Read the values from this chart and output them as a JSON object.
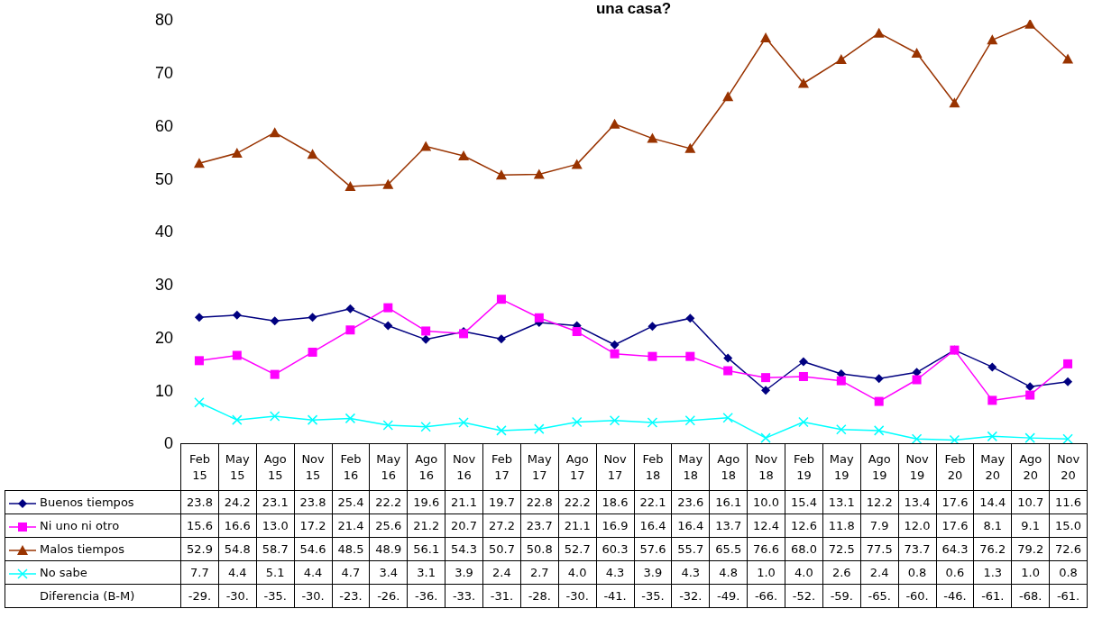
{
  "chart_data": {
    "type": "line",
    "title": "una casa?",
    "categories": [
      "Feb 15",
      "May 15",
      "Ago 15",
      "Nov 15",
      "Feb 16",
      "May 16",
      "Ago 16",
      "Nov 16",
      "Feb 17",
      "May 17",
      "Ago 17",
      "Nov 17",
      "Feb 18",
      "May 18",
      "Ago 18",
      "Nov 18",
      "Feb 19",
      "May 19",
      "Ago 19",
      "Nov 19",
      "Feb 20",
      "May 20",
      "Ago 20",
      "Nov 20"
    ],
    "series": [
      {
        "name": "Buenos tiempos",
        "color": "#000080",
        "marker": "diamond",
        "values": [
          23.8,
          24.2,
          23.1,
          23.8,
          25.4,
          22.2,
          19.6,
          21.1,
          19.7,
          22.8,
          22.2,
          18.6,
          22.1,
          23.6,
          16.1,
          10.0,
          15.4,
          13.1,
          12.2,
          13.4,
          17.6,
          14.4,
          10.7,
          11.6
        ],
        "value_labels": [
          "23.8",
          "24.2",
          "23.1",
          "23.8",
          "25.4",
          "22.2",
          "19.6",
          "21.1",
          "19.7",
          "22.8",
          "22.2",
          "18.6",
          "22.1",
          "23.6",
          "16.1",
          "10.0",
          "15.4",
          "13.1",
          "12.2",
          "13.4",
          "17.6",
          "14.4",
          "10.7",
          "11.6"
        ]
      },
      {
        "name": "Ni uno ni otro",
        "color": "#ff00ff",
        "marker": "square",
        "values": [
          15.6,
          16.6,
          13.0,
          17.2,
          21.4,
          25.6,
          21.2,
          20.7,
          27.2,
          23.7,
          21.1,
          16.9,
          16.4,
          16.4,
          13.7,
          12.4,
          12.6,
          11.8,
          7.9,
          12.0,
          17.6,
          8.1,
          9.1,
          15.0
        ],
        "value_labels": [
          "15.6",
          "16.6",
          "13.0",
          "17.2",
          "21.4",
          "25.6",
          "21.2",
          "20.7",
          "27.2",
          "23.7",
          "21.1",
          "16.9",
          "16.4",
          "16.4",
          "13.7",
          "12.4",
          "12.6",
          "11.8",
          "7.9",
          "12.0",
          "17.6",
          "8.1",
          "9.1",
          "15.0"
        ]
      },
      {
        "name": "Malos tiempos",
        "color": "#993300",
        "marker": "triangle",
        "values": [
          52.9,
          54.8,
          58.7,
          54.6,
          48.5,
          48.9,
          56.1,
          54.3,
          50.7,
          50.8,
          52.7,
          60.3,
          57.6,
          55.7,
          65.5,
          76.6,
          68.0,
          72.5,
          77.5,
          73.7,
          64.3,
          76.2,
          79.2,
          72.6
        ],
        "value_labels": [
          "52.9",
          "54.8",
          "58.7",
          "54.6",
          "48.5",
          "48.9",
          "56.1",
          "54.3",
          "50.7",
          "50.8",
          "52.7",
          "60.3",
          "57.6",
          "55.7",
          "65.5",
          "76.6",
          "68.0",
          "72.5",
          "77.5",
          "73.7",
          "64.3",
          "76.2",
          "79.2",
          "72.6"
        ]
      },
      {
        "name": "No sabe",
        "color": "#00ffff",
        "marker": "cross",
        "values": [
          7.7,
          4.4,
          5.1,
          4.4,
          4.7,
          3.4,
          3.1,
          3.9,
          2.4,
          2.7,
          4.0,
          4.3,
          3.9,
          4.3,
          4.8,
          1.0,
          4.0,
          2.6,
          2.4,
          0.8,
          0.6,
          1.3,
          1.0,
          0.8
        ],
        "value_labels": [
          "7.7",
          "4.4",
          "5.1",
          "4.4",
          "4.7",
          "3.4",
          "3.1",
          "3.9",
          "2.4",
          "2.7",
          "4.0",
          "4.3",
          "3.9",
          "4.3",
          "4.8",
          "1.0",
          "4.0",
          "2.6",
          "2.4",
          "0.8",
          "0.6",
          "1.3",
          "1.0",
          "0.8"
        ]
      }
    ],
    "ylim": [
      0,
      80
    ],
    "yticks": [
      0,
      10,
      20,
      30,
      40,
      50,
      60,
      70,
      80
    ],
    "grid": false,
    "legend": "bottom",
    "annotations": [
      "Diferencia (B-M)",
      "-29.",
      "-30.",
      "-35.",
      "-30.",
      "-23.",
      "-26.",
      "-36.",
      "-33.",
      "-31.",
      "-28.",
      "-30.",
      "-41.",
      "-35.",
      "-32.",
      "-49.",
      "-66.",
      "-52.",
      "-59.",
      "-65.",
      "-60.",
      "-46.",
      "-61.",
      "-68.",
      "-61."
    ]
  }
}
